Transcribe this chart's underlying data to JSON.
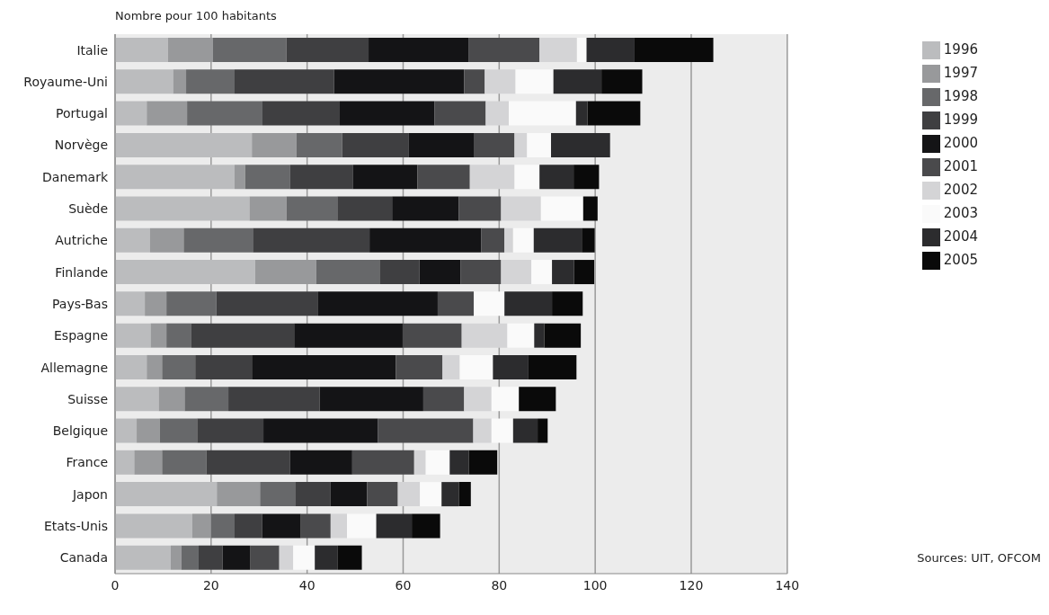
{
  "chart_data": {
    "type": "bar",
    "orientation": "horizontal",
    "stacked": true,
    "xlabel": "Nombre pour 100 habitants",
    "categories": [
      "Italie",
      "Royaume-Uni",
      "Portugal",
      "Norvège",
      "Danemark",
      "Suède",
      "Autriche",
      "Finlande",
      "Pays-Bas",
      "Espagne",
      "Allemagne",
      "Suisse",
      "Belgique",
      "France",
      "Japon",
      "Etats-Unis",
      "Canada"
    ],
    "series": [
      {
        "name": "1996",
        "color": "#bbbcbe",
        "values": [
          11.0,
          12.1,
          6.6,
          28.5,
          24.9,
          28.0,
          7.3,
          29.2,
          6.2,
          7.4,
          6.6,
          9.1,
          4.5,
          4.0,
          21.2,
          16.1,
          11.6
        ]
      },
      {
        "name": "1997",
        "color": "#98999b",
        "values": [
          9.4,
          2.7,
          8.4,
          9.3,
          2.2,
          7.7,
          7.0,
          12.7,
          4.5,
          3.3,
          3.2,
          5.4,
          4.8,
          5.8,
          9.0,
          3.9,
          2.2
        ]
      },
      {
        "name": "1998",
        "color": "#67686a",
        "values": [
          15.3,
          10.1,
          15.7,
          9.5,
          9.3,
          10.6,
          14.4,
          13.2,
          10.4,
          5.2,
          6.9,
          9.1,
          7.8,
          9.2,
          7.3,
          4.9,
          3.6
        ]
      },
      {
        "name": "1999",
        "color": "#3f3f41",
        "values": [
          17.1,
          20.7,
          16.1,
          13.8,
          13.1,
          11.4,
          24.3,
          8.3,
          21.2,
          21.4,
          11.8,
          19.0,
          13.8,
          17.4,
          7.4,
          5.7,
          5.0
        ]
      },
      {
        "name": "2000",
        "color": "#141416",
        "values": [
          20.9,
          27.1,
          19.7,
          13.6,
          13.5,
          13.9,
          23.3,
          8.6,
          24.9,
          22.6,
          30.0,
          21.6,
          23.8,
          13.0,
          7.6,
          8.1,
          5.7
        ]
      },
      {
        "name": "2001",
        "color": "#4a4a4c",
        "values": [
          14.7,
          4.3,
          10.7,
          8.5,
          10.9,
          8.8,
          4.8,
          8.4,
          7.5,
          12.3,
          9.7,
          8.5,
          19.9,
          12.9,
          6.4,
          6.2,
          6.1
        ]
      },
      {
        "name": "2002",
        "color": "#d4d4d6",
        "values": [
          7.8,
          6.4,
          4.8,
          2.6,
          9.3,
          8.3,
          1.8,
          6.3,
          0,
          9.5,
          3.6,
          5.7,
          3.8,
          2.4,
          4.6,
          3.4,
          2.9
        ]
      },
      {
        "name": "2003",
        "color": "#fafafa",
        "values": [
          2.0,
          7.9,
          14.0,
          5.0,
          5.2,
          8.8,
          4.3,
          4.3,
          6.4,
          5.6,
          6.9,
          5.7,
          4.5,
          5.0,
          4.5,
          6.1,
          4.5
        ]
      },
      {
        "name": "2004",
        "color": "#2c2c2e",
        "values": [
          10.0,
          10.0,
          2.4,
          12.3,
          7.1,
          0,
          10.0,
          4.6,
          9.9,
          2.1,
          7.4,
          0,
          5.1,
          4.0,
          3.6,
          7.4,
          4.8
        ]
      },
      {
        "name": "2005",
        "color": "#0a0a0a",
        "values": [
          16.4,
          8.5,
          11.0,
          0,
          5.3,
          3.0,
          2.7,
          4.2,
          6.4,
          7.6,
          10.0,
          7.7,
          2.1,
          5.9,
          2.5,
          5.9,
          5.0
        ]
      }
    ],
    "xlim": [
      0,
      140
    ],
    "xticks": [
      0,
      20,
      40,
      60,
      80,
      100,
      120,
      140
    ],
    "grid": "x",
    "legend": "top right",
    "annotations": [
      "Sources: UIT, OFCOM"
    ]
  }
}
